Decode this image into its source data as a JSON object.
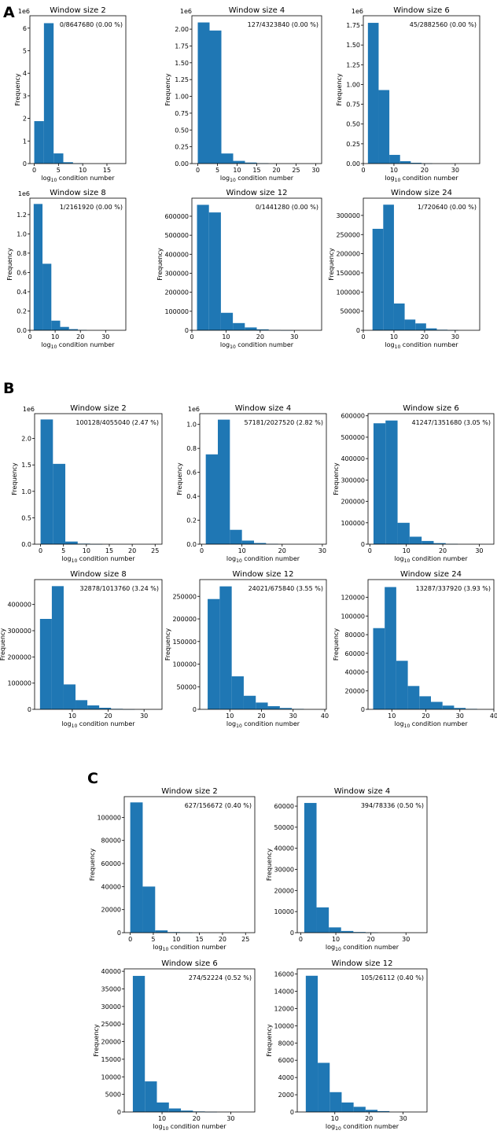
{
  "figure": {
    "xlabel_main": "log",
    "xlabel_sub": "10",
    "xlabel_rest": " condition number",
    "ylabel": "Frequency",
    "bar_color": "#1f77b4"
  },
  "chart_data": [
    {
      "panel": "A",
      "type": "bar",
      "title": "Window size 2",
      "annotation": "0/8647680 (0.00 %)",
      "bin_width": 2,
      "bins_start": 0,
      "values": [
        1.88,
        6.22,
        0.45,
        0.06,
        0.01,
        0,
        0,
        0,
        0
      ],
      "xlim": [
        -0.9,
        18.9
      ],
      "xticks": [
        0,
        5,
        10,
        15
      ],
      "ylim": [
        0,
        6.55
      ],
      "yticks": [
        0,
        1,
        2,
        3,
        4,
        5,
        6
      ],
      "ytick_labels": [
        "0",
        "1",
        "2",
        "3",
        "4",
        "5",
        "6"
      ],
      "offset_text": "1e6",
      "xlabel": "log10 condition number",
      "ylabel": "Frequency"
    },
    {
      "panel": "A",
      "type": "bar",
      "title": "Window size 4",
      "annotation": "127/4323840 (0.00 %)",
      "bin_width": 3,
      "bins_start": 0,
      "values": [
        2.1,
        1.98,
        0.15,
        0.04,
        0.015,
        0.005,
        0,
        0,
        0,
        0
      ],
      "xlim": [
        -1.5,
        31.5
      ],
      "xticks": [
        0,
        5,
        10,
        15,
        20,
        25,
        30
      ],
      "ylim": [
        0,
        2.2
      ],
      "yticks": [
        0,
        0.25,
        0.5,
        0.75,
        1.0,
        1.25,
        1.5,
        1.75,
        2.0
      ],
      "ytick_labels": [
        "0.00",
        "0.25",
        "0.50",
        "0.75",
        "1.00",
        "1.25",
        "1.50",
        "1.75",
        "2.00"
      ],
      "offset_text": "1e6",
      "xlabel": "log10 condition number",
      "ylabel": "Frequency"
    },
    {
      "panel": "A",
      "type": "bar",
      "title": "Window size 6",
      "annotation": "45/2882560 (0.00 %)",
      "bin_width": 3.5,
      "bins_start": 1.5,
      "values": [
        1.78,
        0.93,
        0.11,
        0.03,
        0.01,
        0.003,
        0,
        0,
        0,
        0
      ],
      "xlim": [
        0,
        38
      ],
      "xticks": [
        0,
        10,
        20,
        30
      ],
      "ylim": [
        0,
        1.87
      ],
      "yticks": [
        0,
        0.25,
        0.5,
        0.75,
        1.0,
        1.25,
        1.5,
        1.75
      ],
      "ytick_labels": [
        "0.00",
        "0.25",
        "0.50",
        "0.75",
        "1.00",
        "1.25",
        "1.50",
        "1.75"
      ],
      "offset_text": "1e6",
      "xlabel": "log10 condition number",
      "ylabel": "Frequency"
    },
    {
      "panel": "A",
      "type": "bar",
      "title": "Window size 8",
      "annotation": "1/2161920 (0.00 %)",
      "bin_width": 3.5,
      "bins_start": 1.5,
      "values": [
        1.31,
        0.69,
        0.1,
        0.035,
        0.012,
        0.004,
        0,
        0,
        0,
        0
      ],
      "xlim": [
        0,
        38
      ],
      "xticks": [
        0,
        10,
        20,
        30
      ],
      "ylim": [
        0,
        1.37
      ],
      "yticks": [
        0,
        0.2,
        0.4,
        0.6,
        0.8,
        1.0,
        1.2
      ],
      "ytick_labels": [
        "0.0",
        "0.2",
        "0.4",
        "0.6",
        "0.8",
        "1.0",
        "1.2"
      ],
      "offset_text": "1e6",
      "xlabel": "log10 condition number",
      "ylabel": "Frequency"
    },
    {
      "panel": "A",
      "type": "bar",
      "title": "Window size 12",
      "annotation": "0/1441280 (0.00 %)",
      "bin_width": 3.5,
      "bins_start": 1.5,
      "values": [
        660000,
        620000,
        92000,
        38000,
        15000,
        5000,
        1500,
        500,
        0,
        0
      ],
      "xlim": [
        0,
        38
      ],
      "xticks": [
        0,
        10,
        20,
        30
      ],
      "ylim": [
        0,
        695000
      ],
      "yticks": [
        0,
        100000,
        200000,
        300000,
        400000,
        500000,
        600000
      ],
      "ytick_labels": [
        "0",
        "100000",
        "200000",
        "300000",
        "400000",
        "500000",
        "600000"
      ],
      "offset_text": "",
      "xlabel": "log10 condition number",
      "ylabel": "Frequency"
    },
    {
      "panel": "A",
      "type": "bar",
      "title": "Window size 24",
      "annotation": "1/720640 (0.00 %)",
      "bin_width": 3.5,
      "bins_start": 3,
      "values": [
        265000,
        328000,
        70000,
        28000,
        18000,
        5000,
        1500,
        500,
        0,
        0
      ],
      "xlim": [
        0,
        38
      ],
      "xticks": [
        0,
        10,
        20,
        30
      ],
      "ylim": [
        0,
        345000
      ],
      "yticks": [
        0,
        50000,
        100000,
        150000,
        200000,
        250000,
        300000
      ],
      "ytick_labels": [
        "0",
        "50000",
        "100000",
        "150000",
        "200000",
        "250000",
        "300000"
      ],
      "offset_text": "",
      "xlabel": "log10 condition number",
      "ylabel": "Frequency"
    },
    {
      "panel": "B",
      "type": "bar",
      "title": "Window size 2",
      "annotation": "100128/4055040 (2.47 %)",
      "bin_width": 2.7,
      "bins_start": 0,
      "values": [
        2.36,
        1.52,
        0.05,
        0.01,
        0.003,
        0,
        0,
        0,
        0
      ],
      "xlim": [
        -1.3,
        26.5
      ],
      "xticks": [
        0,
        5,
        10,
        15,
        20,
        25
      ],
      "ylim": [
        0,
        2.47
      ],
      "yticks": [
        0,
        0.5,
        1.0,
        1.5,
        2.0
      ],
      "ytick_labels": [
        "0.0",
        "0.5",
        "1.0",
        "1.5",
        "2.0"
      ],
      "offset_text": "1e6",
      "xlabel": "log10 condition number",
      "ylabel": "Frequency"
    },
    {
      "panel": "B",
      "type": "bar",
      "title": "Window size 4",
      "annotation": "57181/2027520 (2.82 %)",
      "bin_width": 3,
      "bins_start": 1,
      "values": [
        0.75,
        1.04,
        0.12,
        0.03,
        0.01,
        0.003,
        0,
        0,
        0,
        0
      ],
      "xlim": [
        -0.5,
        31
      ],
      "xticks": [
        0,
        10,
        20,
        30
      ],
      "ylim": [
        0,
        1.09
      ],
      "yticks": [
        0,
        0.2,
        0.4,
        0.6,
        0.8,
        1.0
      ],
      "ytick_labels": [
        "0.0",
        "0.2",
        "0.4",
        "0.6",
        "0.8",
        "1.0"
      ],
      "offset_text": "1e6",
      "xlabel": "log10 condition number",
      "ylabel": "Frequency"
    },
    {
      "panel": "B",
      "type": "bar",
      "title": "Window size 6",
      "annotation": "41247/1351680 (3.05 %)",
      "bin_width": 3.3,
      "bins_start": 1,
      "values": [
        565000,
        578000,
        100000,
        35000,
        15000,
        5000,
        1500,
        0,
        0,
        0
      ],
      "xlim": [
        -0.5,
        34
      ],
      "xticks": [
        0,
        10,
        20,
        30
      ],
      "ylim": [
        0,
        610000
      ],
      "yticks": [
        0,
        100000,
        200000,
        300000,
        400000,
        500000,
        600000
      ],
      "ytick_labels": [
        "0",
        "100000",
        "200000",
        "300000",
        "400000",
        "500000",
        "600000"
      ],
      "offset_text": "",
      "xlabel": "log10 condition number",
      "ylabel": "Frequency"
    },
    {
      "panel": "B",
      "type": "bar",
      "title": "Window size 8",
      "annotation": "32878/1013760 (3.24 %)",
      "bin_width": 3.3,
      "bins_start": 1,
      "values": [
        345000,
        470000,
        95000,
        35000,
        15000,
        6000,
        2000,
        500,
        0,
        0
      ],
      "xlim": [
        -0.5,
        35
      ],
      "xticks": [
        10,
        20,
        30
      ],
      "ylim": [
        0,
        495000
      ],
      "yticks": [
        0,
        100000,
        200000,
        300000,
        400000
      ],
      "ytick_labels": [
        "0",
        "100000",
        "200000",
        "300000",
        "400000"
      ],
      "offset_text": "",
      "xlabel": "log10 condition number",
      "ylabel": "Frequency"
    },
    {
      "panel": "B",
      "type": "bar",
      "title": "Window size 12",
      "annotation": "24021/675840 (3.55 %)",
      "bin_width": 3.8,
      "bins_start": 3,
      "values": [
        244000,
        272000,
        73000,
        30000,
        15000,
        7000,
        3000,
        1000,
        0,
        0
      ],
      "xlim": [
        0.5,
        40.5
      ],
      "xticks": [
        10,
        20,
        30,
        40
      ],
      "ylim": [
        0,
        287000
      ],
      "yticks": [
        0,
        50000,
        100000,
        150000,
        200000,
        250000
      ],
      "ytick_labels": [
        "0",
        "50000",
        "100000",
        "150000",
        "200000",
        "250000"
      ],
      "offset_text": "",
      "xlabel": "log10 condition number",
      "ylabel": "Frequency"
    },
    {
      "panel": "B",
      "type": "bar",
      "title": "Window size 24",
      "annotation": "13287/337920 (3.93 %)",
      "bin_width": 3.4,
      "bins_start": 4.5,
      "values": [
        87000,
        131000,
        52000,
        25000,
        14000,
        8000,
        4000,
        1500,
        500,
        0
      ],
      "xlim": [
        3,
        40
      ],
      "xticks": [
        10,
        20,
        30,
        40
      ],
      "ylim": [
        0,
        139000
      ],
      "yticks": [
        0,
        20000,
        40000,
        60000,
        80000,
        100000,
        120000
      ],
      "ytick_labels": [
        "0",
        "20000",
        "40000",
        "60000",
        "80000",
        "100000",
        "120000"
      ],
      "offset_text": "",
      "xlabel": "log10 condition number",
      "ylabel": "Frequency"
    },
    {
      "panel": "C",
      "type": "bar",
      "title": "Window size 2",
      "annotation": "627/156672 (0.40 %)",
      "bin_width": 2.7,
      "bins_start": 0,
      "values": [
        113000,
        40000,
        2000,
        500,
        200,
        0,
        0,
        0,
        0
      ],
      "xlim": [
        -1.3,
        27
      ],
      "xticks": [
        0,
        5,
        10,
        15,
        20,
        25
      ],
      "ylim": [
        0,
        118000
      ],
      "yticks": [
        0,
        20000,
        40000,
        60000,
        80000,
        100000
      ],
      "ytick_labels": [
        "0",
        "20000",
        "40000",
        "60000",
        "80000",
        "100000"
      ],
      "offset_text": "",
      "xlabel": "log10 condition number",
      "ylabel": "Frequency"
    },
    {
      "panel": "C",
      "type": "bar",
      "title": "Window size 4",
      "annotation": "394/78336 (0.50 %)",
      "bin_width": 3.5,
      "bins_start": 1,
      "values": [
        61500,
        12000,
        2500,
        800,
        300,
        100,
        0,
        0,
        0,
        0
      ],
      "xlim": [
        -1,
        36
      ],
      "xticks": [
        0,
        10,
        20,
        30
      ],
      "ylim": [
        0,
        64500
      ],
      "yticks": [
        0,
        10000,
        20000,
        30000,
        40000,
        50000,
        60000
      ],
      "ytick_labels": [
        "0",
        "10000",
        "20000",
        "30000",
        "40000",
        "50000",
        "60000"
      ],
      "offset_text": "",
      "xlabel": "log10 condition number",
      "ylabel": "Frequency"
    },
    {
      "panel": "C",
      "type": "bar",
      "title": "Window size 6",
      "annotation": "274/52224 (0.52 %)",
      "bin_width": 3.5,
      "bins_start": 1.5,
      "values": [
        38700,
        8700,
        2700,
        1000,
        400,
        150,
        50,
        0,
        0,
        0
      ],
      "xlim": [
        -1,
        37
      ],
      "xticks": [
        10,
        20,
        30
      ],
      "ylim": [
        0,
        40700
      ],
      "yticks": [
        0,
        5000,
        10000,
        15000,
        20000,
        25000,
        30000,
        35000,
        40000
      ],
      "ytick_labels": [
        "0",
        "5000",
        "10000",
        "15000",
        "20000",
        "25000",
        "30000",
        "35000",
        "40000"
      ],
      "offset_text": "",
      "xlabel": "log10 condition number",
      "ylabel": "Frequency"
    },
    {
      "panel": "C",
      "type": "bar",
      "title": "Window size 12",
      "annotation": "105/26112 (0.40 %)",
      "bin_width": 3.5,
      "bins_start": 1.5,
      "values": [
        15800,
        5700,
        2300,
        1100,
        600,
        250,
        100,
        0,
        0,
        0
      ],
      "xlim": [
        -1,
        37
      ],
      "xticks": [
        10,
        20,
        30
      ],
      "ylim": [
        0,
        16600
      ],
      "yticks": [
        0,
        2000,
        4000,
        6000,
        8000,
        10000,
        12000,
        14000,
        16000
      ],
      "ytick_labels": [
        "0",
        "2000",
        "4000",
        "6000",
        "8000",
        "10000",
        "12000",
        "14000",
        "16000"
      ],
      "offset_text": "",
      "xlabel": "log10 condition number",
      "ylabel": "Frequency"
    }
  ],
  "panel_letters": [
    "A",
    "B",
    "C"
  ]
}
